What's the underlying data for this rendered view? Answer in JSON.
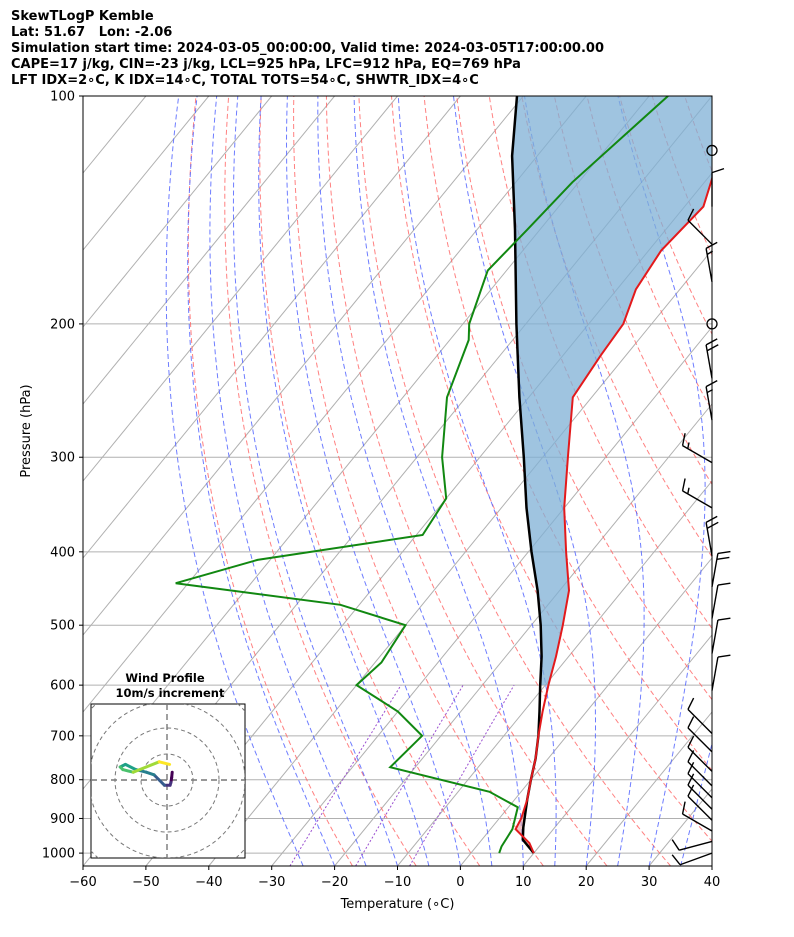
{
  "header": {
    "line1": "SkewTLogP Kemble",
    "line2": "Lat: 51.67   Lon: -2.06",
    "line3": "Simulation start time: 2024-03-05_00:00:00, Valid time: 2024-03-05T17:00:00.00",
    "line4": "CAPE=17 j/kg, CIN=-23 j/kg, LCL=925 hPa, LFC=912 hPa, EQ=769 hPa",
    "line5": "LFT IDX=2∘C, K IDX=14∘C, TOTAL TOTS=54∘C, SHWTR_IDX=4∘C"
  },
  "colors": {
    "temperature": "#e31a1c",
    "dewpoint": "#118811",
    "parcel": "#000000",
    "cape_fill": "#7fb0d6",
    "dry_adiabat": "#ff6b6b",
    "moist_adiabat": "#5566ff",
    "mixing_ratio": "#9a4fd0",
    "isotherm": "#b0b0b0"
  },
  "chart_data": {
    "type": "skewt",
    "xlabel": "Temperature (∘C)",
    "ylabel": "Pressure (hPa)",
    "xlim": [
      -60,
      40
    ],
    "ylim": [
      1040,
      100
    ],
    "x_ticks": [
      "−60",
      "−50",
      "−40",
      "−30",
      "−20",
      "−10",
      "0",
      "10",
      "20",
      "30",
      "40"
    ],
    "x_tick_values": [
      -60,
      -50,
      -40,
      -30,
      -20,
      -10,
      0,
      10,
      20,
      30,
      40
    ],
    "y_ticks": [
      "1000",
      "900",
      "800",
      "700",
      "600",
      "500",
      "400",
      "300",
      "200",
      "100"
    ],
    "y_tick_values": [
      1000,
      900,
      800,
      700,
      600,
      500,
      400,
      300,
      200,
      100
    ],
    "temperature": [
      [
        1000,
        10
      ],
      [
        970,
        8
      ],
      [
        930,
        4
      ],
      [
        900,
        3.5
      ],
      [
        850,
        2
      ],
      [
        800,
        0
      ],
      [
        750,
        -2
      ],
      [
        700,
        -4.5
      ],
      [
        650,
        -7
      ],
      [
        600,
        -9.5
      ],
      [
        550,
        -12
      ],
      [
        500,
        -15
      ],
      [
        450,
        -18.5
      ],
      [
        400,
        -24
      ],
      [
        350,
        -30
      ],
      [
        300,
        -36
      ],
      [
        250,
        -43
      ],
      [
        220,
        -44
      ],
      [
        200,
        -44.5
      ],
      [
        180,
        -47
      ],
      [
        160,
        -48
      ],
      [
        140,
        -47
      ],
      [
        125,
        -50
      ],
      [
        110,
        -53
      ],
      [
        100,
        -55
      ]
    ],
    "dewpoint": [
      [
        1000,
        4.5
      ],
      [
        980,
        4
      ],
      [
        930,
        3.5
      ],
      [
        870,
        1.5
      ],
      [
        830,
        -5
      ],
      [
        770,
        -24
      ],
      [
        700,
        -23
      ],
      [
        650,
        -30
      ],
      [
        600,
        -40
      ],
      [
        560,
        -39
      ],
      [
        500,
        -40
      ],
      [
        470,
        -53
      ],
      [
        440,
        -82
      ],
      [
        410,
        -72
      ],
      [
        380,
        -49
      ],
      [
        340,
        -50
      ],
      [
        300,
        -56
      ],
      [
        250,
        -63
      ],
      [
        210,
        -67
      ],
      [
        200,
        -69
      ],
      [
        170,
        -73
      ],
      [
        150,
        -72
      ],
      [
        130,
        -71
      ],
      [
        100,
        -67
      ]
    ],
    "parcel": [
      [
        1000,
        10
      ],
      [
        960,
        6.5
      ],
      [
        925,
        5
      ],
      [
        850,
        2
      ],
      [
        800,
        0
      ],
      [
        750,
        -2
      ],
      [
        700,
        -4.5
      ],
      [
        650,
        -7.5
      ],
      [
        600,
        -10.8
      ],
      [
        550,
        -14.3
      ],
      [
        500,
        -18.5
      ],
      [
        450,
        -23.5
      ],
      [
        400,
        -29.5
      ],
      [
        350,
        -36
      ],
      [
        300,
        -43
      ],
      [
        250,
        -51.5
      ],
      [
        200,
        -61.5
      ],
      [
        150,
        -74
      ],
      [
        120,
        -84
      ],
      [
        100,
        -91
      ]
    ],
    "wind_barbs": [
      {
        "p": 1000,
        "dir": 250,
        "spd": 10
      },
      {
        "p": 965,
        "dir": 255,
        "spd": 12
      },
      {
        "p": 935,
        "dir": 300,
        "spd": 12
      },
      {
        "p": 905,
        "dir": 315,
        "spd": 12
      },
      {
        "p": 875,
        "dir": 315,
        "spd": 12
      },
      {
        "p": 845,
        "dir": 315,
        "spd": 10
      },
      {
        "p": 815,
        "dir": 315,
        "spd": 10
      },
      {
        "p": 780,
        "dir": 315,
        "spd": 10
      },
      {
        "p": 735,
        "dir": 315,
        "spd": 10
      },
      {
        "p": 695,
        "dir": 315,
        "spd": 10
      },
      {
        "p": 610,
        "dir": 10,
        "spd": 10
      },
      {
        "p": 545,
        "dir": 10,
        "spd": 10
      },
      {
        "p": 490,
        "dir": 10,
        "spd": 10
      },
      {
        "p": 445,
        "dir": 10,
        "spd": 20
      },
      {
        "p": 405,
        "dir": 350,
        "spd": 20
      },
      {
        "p": 350,
        "dir": 300,
        "spd": 15
      },
      {
        "p": 305,
        "dir": 300,
        "spd": 15
      },
      {
        "p": 268,
        "dir": 350,
        "spd": 15
      },
      {
        "p": 236,
        "dir": 350,
        "spd": 20
      },
      {
        "p": 200,
        "dir": 0,
        "spd": 0
      },
      {
        "p": 176,
        "dir": 350,
        "spd": 15
      },
      {
        "p": 157,
        "dir": 315,
        "spd": 10
      },
      {
        "p": 140,
        "dir": 0,
        "spd": 10
      },
      {
        "p": 118,
        "dir": 0,
        "spd": 0
      }
    ],
    "hodograph": {
      "title": "Wind Profile",
      "subtitle": "10m/s increment",
      "rings_ms": [
        10,
        20,
        30,
        40
      ],
      "trace_uv": [
        [
          2,
          3
        ],
        [
          1.8,
          1
        ],
        [
          1.5,
          -1
        ],
        [
          1.2,
          -2
        ],
        [
          -1,
          -2
        ],
        [
          -3,
          0
        ],
        [
          -5,
          2
        ],
        [
          -8,
          3
        ],
        [
          -12,
          4
        ],
        [
          -16,
          6
        ],
        [
          -18,
          5
        ],
        [
          -17,
          4
        ],
        [
          -13,
          3
        ],
        [
          -8,
          5
        ],
        [
          -3,
          7
        ],
        [
          1,
          6
        ]
      ]
    }
  }
}
